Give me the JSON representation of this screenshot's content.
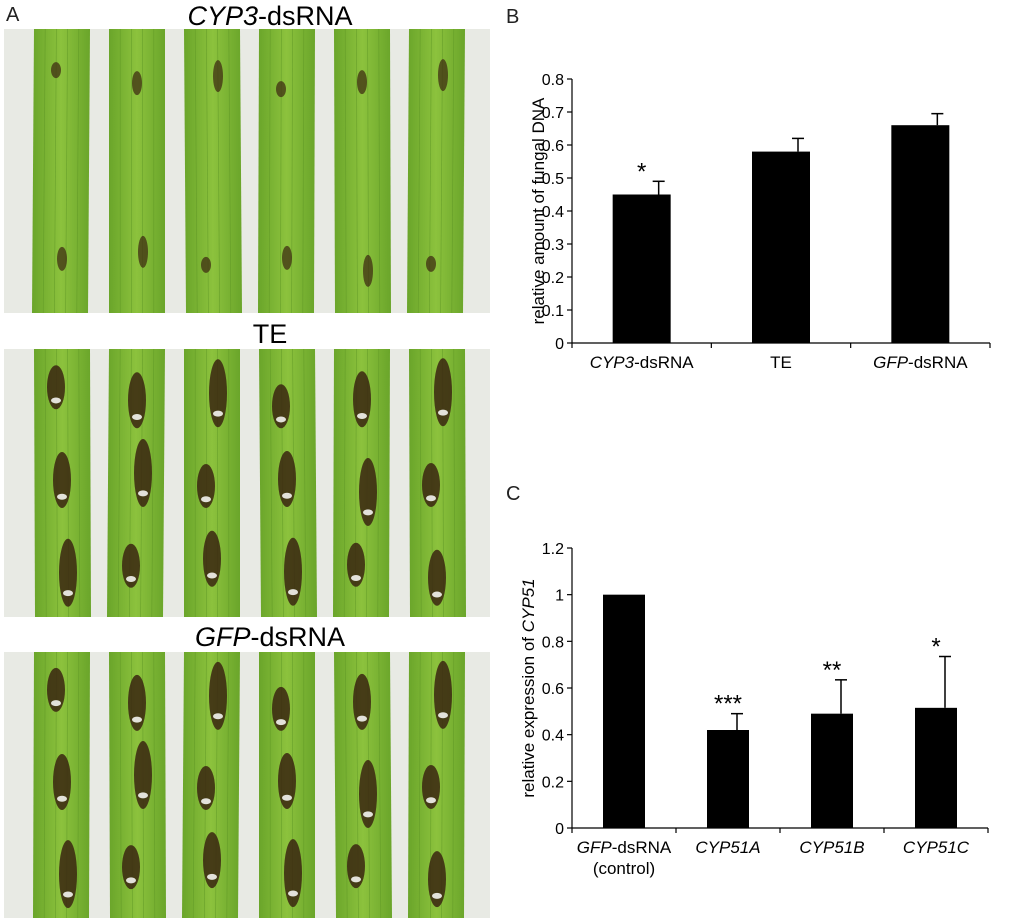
{
  "panels": {
    "a": {
      "label": "A",
      "groups": [
        {
          "title_italic": "CYP3",
          "title_rest": "-dsRNA",
          "lesion_level": "low"
        },
        {
          "title_italic": "",
          "title_rest": "TE",
          "lesion_level": "high"
        },
        {
          "title_italic": "GFP",
          "title_rest": "-dsRNA",
          "lesion_level": "high"
        }
      ],
      "colors": {
        "leaf": "#6aa52a",
        "leaf_light": "#8cc23d",
        "background": "#e8eae4",
        "lesion": "#3a2410"
      }
    },
    "b": {
      "label": "B"
    },
    "c": {
      "label": "C"
    }
  },
  "chart_data": [
    {
      "type": "bar",
      "panel": "B",
      "categories": [
        {
          "italic": "CYP3",
          "rest": "-dsRNA"
        },
        {
          "italic": "",
          "rest": "TE"
        },
        {
          "italic": "GFP",
          "rest": "-dsRNA"
        }
      ],
      "values": [
        0.45,
        0.58,
        0.66
      ],
      "errors": [
        0.04,
        0.04,
        0.035
      ],
      "significance": [
        "*",
        "",
        ""
      ],
      "ylabel": "relative amount of fungal DNA",
      "ylim": [
        0,
        0.8
      ],
      "ytick_labels": [
        "0",
        "0.1",
        "0.2",
        "0.3",
        "0.4",
        "0.5",
        "0.6",
        "0.7",
        "0.8"
      ],
      "grid": false,
      "bar_color": "#000000"
    },
    {
      "type": "bar",
      "panel": "C",
      "categories": [
        {
          "italic": "GFP",
          "rest": "-dsRNA",
          "line2": "(control)"
        },
        {
          "italic": "CYP51A",
          "rest": "",
          "line2": ""
        },
        {
          "italic": "CYP51B",
          "rest": "",
          "line2": ""
        },
        {
          "italic": "CYP51C",
          "rest": "",
          "line2": ""
        }
      ],
      "values": [
        1.0,
        0.42,
        0.49,
        0.515
      ],
      "errors": [
        0,
        0.07,
        0.145,
        0.22
      ],
      "significance": [
        "",
        "***",
        "**",
        "*"
      ],
      "ylabel_prefix": "relative expression of ",
      "ylabel_italic": "CYP51",
      "ylim": [
        0,
        1.2
      ],
      "ytick_labels": [
        "0",
        "0.2",
        "0.4",
        "0.6",
        "0.8",
        "1",
        "1.2"
      ],
      "grid": false,
      "bar_color": "#000000"
    }
  ]
}
